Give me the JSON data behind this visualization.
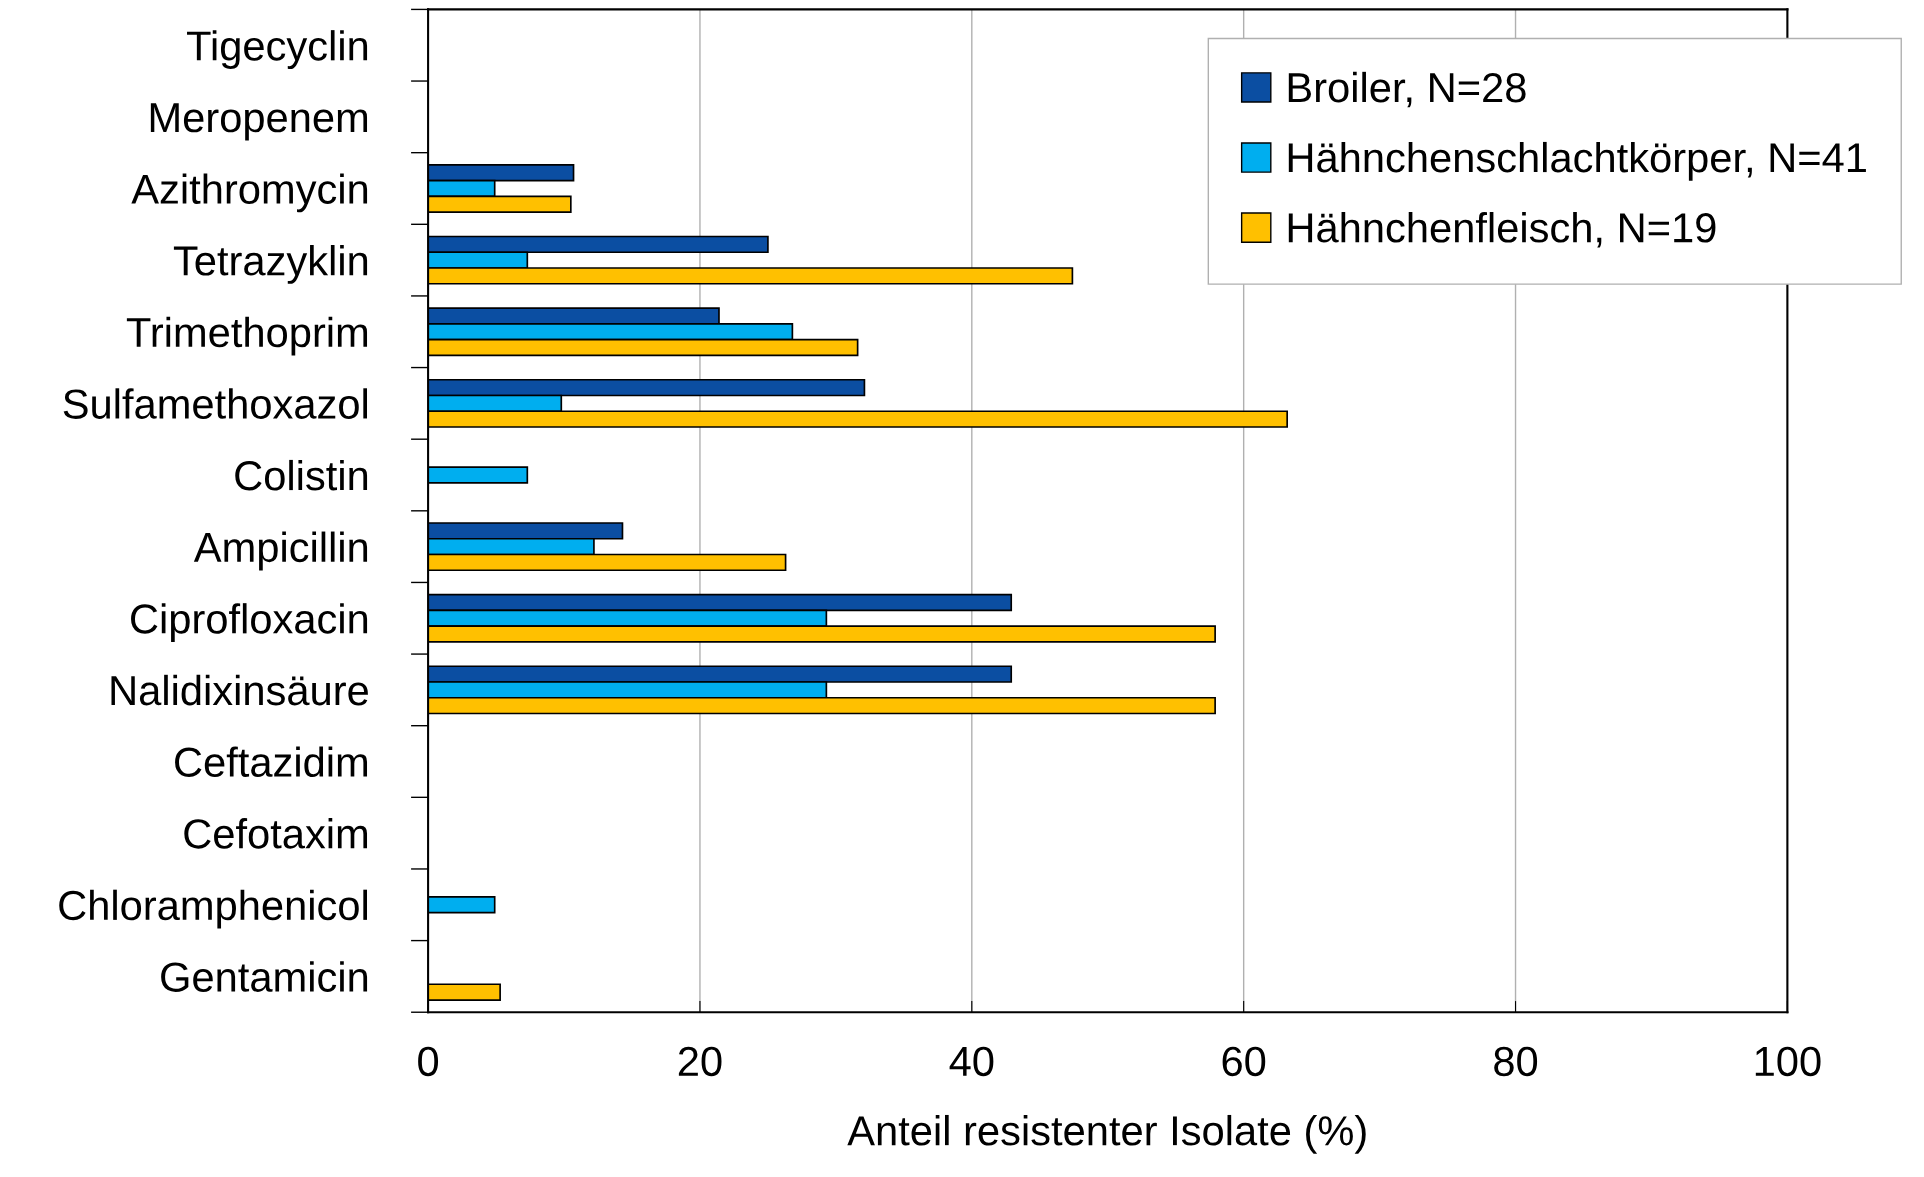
{
  "chart_data": {
    "type": "bar",
    "orientation": "horizontal",
    "xlabel": "Anteil resistenter Isolate (%)",
    "categories": [
      "Tigecyclin",
      "Meropenem",
      "Azithromycin",
      "Tetrazyklin",
      "Trimethoprim",
      "Sulfamethoxazol",
      "Colistin",
      "Ampicillin",
      "Ciprofloxacin",
      "Nalidixinsäure",
      "Ceftazidim",
      "Cefotaxim",
      "Chloramphenicol",
      "Gentamicin"
    ],
    "series": [
      {
        "name": "Broiler, N=28",
        "color": "#0b4ea2",
        "values": [
          0,
          0,
          10.7,
          25.0,
          21.4,
          32.1,
          0,
          14.3,
          42.9,
          42.9,
          0,
          0,
          0,
          0
        ]
      },
      {
        "name": "Hähnchenschlachtkörper, N=41",
        "color": "#00aeef",
        "values": [
          0,
          0,
          4.9,
          7.3,
          26.8,
          9.8,
          7.3,
          12.2,
          29.3,
          29.3,
          0,
          0,
          4.9,
          0
        ]
      },
      {
        "name": "Hähnchenfleisch, N=19",
        "color": "#ffc000",
        "values": [
          0,
          0,
          10.5,
          47.4,
          31.6,
          63.2,
          0,
          26.3,
          57.9,
          57.9,
          0,
          0,
          0,
          5.3
        ]
      }
    ],
    "xlim": [
      0,
      100
    ],
    "xticks": [
      0,
      20,
      40,
      60,
      80,
      100
    ],
    "grid": "x",
    "legend": "top right"
  }
}
